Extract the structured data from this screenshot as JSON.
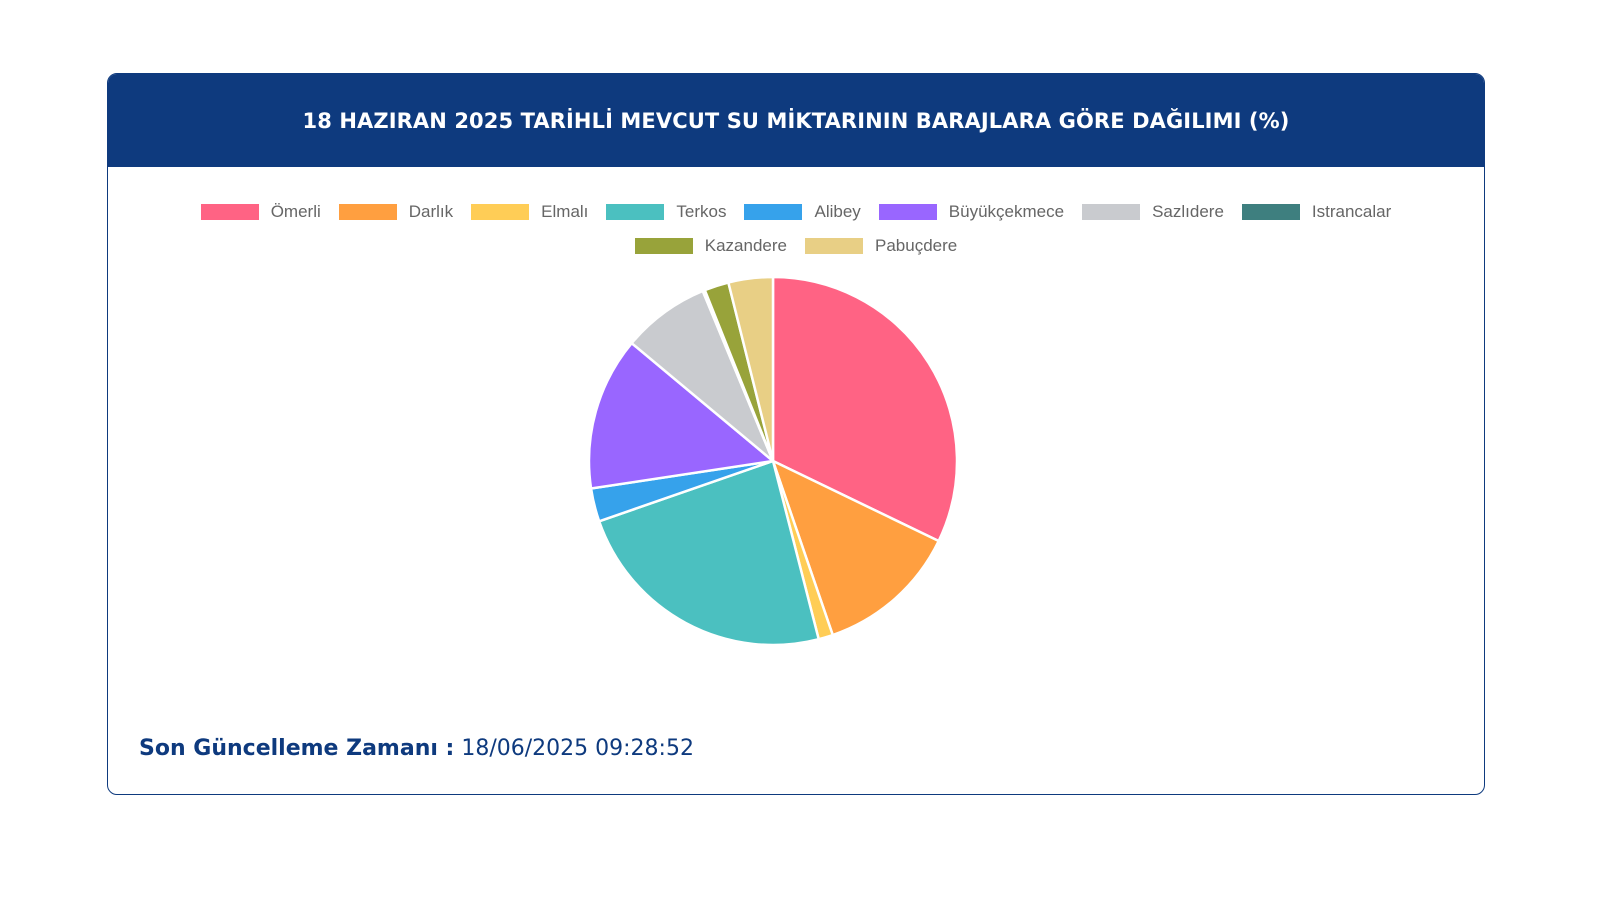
{
  "header": {
    "title": "18 HAZIRAN 2025 TARİHLİ MEVCUT SU MİKTARININ BARAJLARA GÖRE DAĞILIMI (%)"
  },
  "footer": {
    "label": "Son Güncelleme Zamanı :",
    "value": "18/06/2025 09:28:52"
  },
  "colors": {
    "header_bg": "#0e3a7e",
    "text_dark": "#0e3a7e"
  },
  "chart_data": {
    "type": "pie",
    "title": "18 HAZIRAN 2025 TARİHLİ MEVCUT SU MİKTARININ BARAJLARA GÖRE DAĞILIMI (%)",
    "legend_position": "top",
    "categories": [
      "Ömerli",
      "Darlık",
      "Elmalı",
      "Terkos",
      "Alibey",
      "Büyükçekmece",
      "Sazlıdere",
      "Istrancalar",
      "Kazandere",
      "Pabuçdere"
    ],
    "values": [
      33.0,
      12.9,
      1.3,
      24.3,
      3.0,
      13.8,
      7.9,
      0.2,
      2.2,
      4.0
    ],
    "colors": [
      "#ff6384",
      "#ff9f40",
      "#ffcd56",
      "#4bc0c0",
      "#36a2eb",
      "#9966ff",
      "#c9cbcf",
      "#3e7f7f",
      "#98a33a",
      "#e8cf85"
    ]
  }
}
